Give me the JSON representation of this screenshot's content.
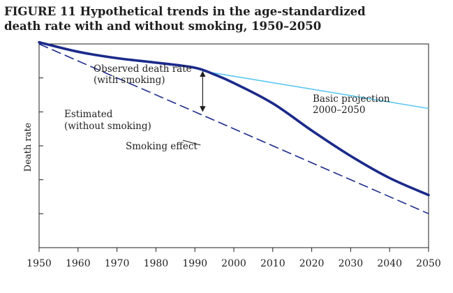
{
  "figure": {
    "title_line1": "FIGURE 11   Hypothetical trends in the age-standardized",
    "title_line2": "death rate with and without smoking, 1950–2050"
  },
  "chart_data": {
    "type": "line",
    "title": "FIGURE 11 Hypothetical trends in the age-standardized death rate with and without smoking, 1950–2050",
    "xlabel": "",
    "ylabel": "Death rate",
    "xlim": [
      1950,
      2050
    ],
    "ylim": [
      0,
      6
    ],
    "x_ticks": [
      1950,
      1960,
      1970,
      1980,
      1990,
      2000,
      2010,
      2020,
      2030,
      2040,
      2050
    ],
    "y_ticks": [
      1,
      2,
      3,
      4,
      5
    ],
    "y_tick_labels_shown": false,
    "grid": false,
    "colors": {
      "observed": "#1b2a8a",
      "estimated": "#1b2a8a",
      "projection": "#5bc8f0",
      "axis": "#1f1f1f"
    },
    "series": [
      {
        "name": "Observed death rate (with smoking)",
        "style": "thick-solid",
        "x": [
          1950,
          1960,
          1970,
          1980,
          1990,
          1995,
          2000,
          2010,
          2020,
          2030,
          2040,
          2050
        ],
        "y": [
          6.05,
          5.77,
          5.58,
          5.45,
          5.3,
          5.1,
          4.85,
          4.25,
          3.45,
          2.7,
          2.05,
          1.55
        ]
      },
      {
        "name": "Estimated (without smoking)",
        "style": "dashed",
        "x": [
          1950,
          2050
        ],
        "y": [
          6.0,
          1.0
        ]
      },
      {
        "name": "Basic projection 2000–2050",
        "style": "thin-solid",
        "x": [
          1992,
          2050
        ],
        "y": [
          5.2,
          4.1
        ]
      }
    ],
    "annotations": {
      "observed_line1": "Observed death rate",
      "observed_line2": "(with smoking)",
      "estimated_line1": "Estimated",
      "estimated_line2": "(without smoking)",
      "projection_line1": "Basic projection",
      "projection_line2": "2000–2050",
      "smoking_effect": "Smoking effect"
    },
    "smoking_effect_arrow": {
      "x": 1992,
      "y_from": 5.2,
      "y_to": 4.0
    }
  }
}
